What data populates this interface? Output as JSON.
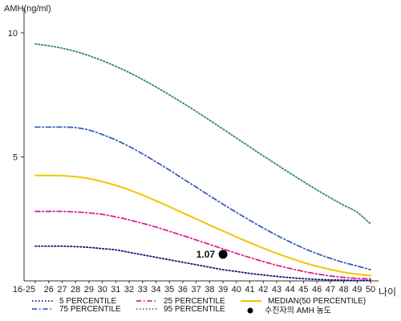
{
  "chart_data": {
    "type": "line",
    "ylabel": "AMH(ng/ml)",
    "xlabel": "나이",
    "categories": [
      "16-25",
      "26",
      "27",
      "28",
      "29",
      "30",
      "31",
      "32",
      "33",
      "34",
      "35",
      "36",
      "37",
      "38",
      "39",
      "40",
      "41",
      "42",
      "43",
      "44",
      "45",
      "46",
      "47",
      "48",
      "49",
      "50"
    ],
    "ylim": [
      0,
      11
    ],
    "yticks": [
      5,
      10
    ],
    "series": [
      {
        "name": "5 PERCENTILE",
        "color": "#0a1a7a",
        "dash": "dot",
        "values": [
          1.4,
          1.4,
          1.4,
          1.38,
          1.35,
          1.3,
          1.25,
          1.15,
          1.05,
          0.95,
          0.85,
          0.75,
          0.65,
          0.55,
          0.45,
          0.38,
          0.3,
          0.24,
          0.18,
          0.13,
          0.09,
          0.06,
          0.04,
          0.03,
          0.02,
          0.02
        ]
      },
      {
        "name": "25 PERCENTILE",
        "color": "#e0208a",
        "dash": "dashdot",
        "values": [
          2.8,
          2.8,
          2.8,
          2.78,
          2.74,
          2.68,
          2.58,
          2.46,
          2.32,
          2.17,
          2.0,
          1.83,
          1.65,
          1.47,
          1.29,
          1.11,
          0.94,
          0.78,
          0.63,
          0.5,
          0.38,
          0.28,
          0.2,
          0.14,
          0.1,
          0.08
        ]
      },
      {
        "name": "MEDIAN(50 PERCENTILE)",
        "color": "#f2c500",
        "dash": "solid",
        "values": [
          4.25,
          4.25,
          4.24,
          4.2,
          4.12,
          4.0,
          3.85,
          3.67,
          3.46,
          3.23,
          2.99,
          2.74,
          2.5,
          2.25,
          2.01,
          1.77,
          1.54,
          1.32,
          1.11,
          0.92,
          0.74,
          0.59,
          0.46,
          0.35,
          0.27,
          0.21
        ]
      },
      {
        "name": "75 PERCENTILE",
        "color": "#3c5cc0",
        "dash": "dashdot",
        "values": [
          6.2,
          6.2,
          6.2,
          6.18,
          6.08,
          5.9,
          5.68,
          5.42,
          5.12,
          4.8,
          4.47,
          4.12,
          3.78,
          3.43,
          3.09,
          2.76,
          2.44,
          2.13,
          1.84,
          1.57,
          1.32,
          1.1,
          0.91,
          0.74,
          0.6,
          0.45
        ]
      },
      {
        "name": "95 PERCENTILE",
        "color": "#2e8b57",
        "dash": "dot",
        "values": [
          9.55,
          9.48,
          9.38,
          9.25,
          9.08,
          8.88,
          8.65,
          8.4,
          8.12,
          7.82,
          7.5,
          7.17,
          6.83,
          6.48,
          6.12,
          5.76,
          5.4,
          5.04,
          4.69,
          4.34,
          4.0,
          3.67,
          3.35,
          3.05,
          2.77,
          2.3
        ]
      }
    ],
    "patient_point": {
      "label": "수진자의 AMH 농도",
      "x": "39",
      "y": 1.07,
      "annotation": "1.07"
    },
    "legend_position": "bottom",
    "grid": false
  }
}
